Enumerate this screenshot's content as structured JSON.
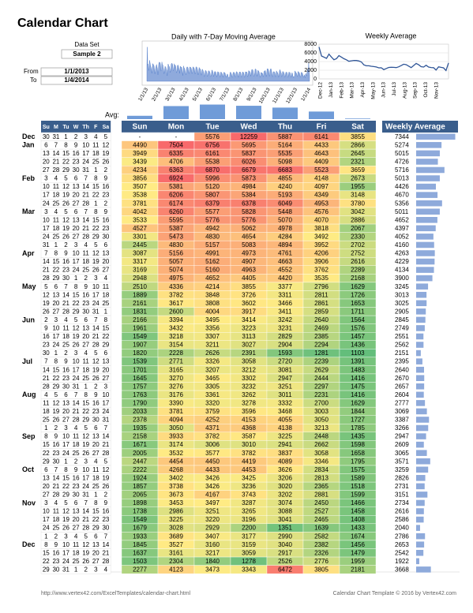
{
  "header": {
    "title": "Calendar Chart"
  },
  "settings": {
    "data_set_label": "Data Set",
    "data_set": "Sample 2",
    "from_label": "From",
    "from": "1/1/2013",
    "to_label": "To",
    "to": "1/4/2014"
  },
  "daily_chart": {
    "type": "area",
    "title": "Daily with 7-Day Moving Average",
    "x_labels": [
      "1/1/13",
      "2/1/13",
      "3/1/13",
      "4/1/13",
      "5/1/13",
      "6/1/13",
      "7/1/13",
      "8/1/13",
      "9/1/13",
      "10/1/13",
      "11/1/13",
      "12/1/13",
      "1/1/14"
    ],
    "ylim": [
      0,
      13000
    ],
    "color": "#4472c4"
  },
  "weekly_chart": {
    "type": "line",
    "title": "Weekly Average",
    "x_labels": [
      "Dec-12",
      "Jan-13",
      "Feb-13",
      "Mar-13",
      "Apr-13",
      "May-13",
      "Jun-13",
      "Jul-13",
      "Aug-13",
      "Sep-13",
      "Oct-13",
      "Nov-13"
    ],
    "ylim": [
      0,
      8000
    ],
    "yticks": [
      0,
      2000,
      4000,
      6000,
      8000
    ],
    "color": "#2f5597"
  },
  "avg": {
    "label": "Avg:",
    "values": [
      2550,
      4150,
      4400,
      4200,
      3900,
      3250,
      2100
    ],
    "lim": [
      2000,
      4600
    ],
    "color": "#6f9bd8"
  },
  "calendar": {
    "weekday_headers": [
      "Su",
      "M",
      "Tu",
      "W",
      "Th",
      "F",
      "Sa"
    ],
    "months": [
      "Dec",
      "Jan",
      null,
      null,
      null,
      "Feb",
      null,
      null,
      null,
      "Mar",
      null,
      null,
      null,
      null,
      "Apr",
      null,
      null,
      null,
      "May",
      null,
      null,
      null,
      "Jun",
      null,
      null,
      null,
      null,
      "Jul",
      null,
      null,
      null,
      "Aug",
      null,
      null,
      null,
      null,
      "Sep",
      null,
      null,
      null,
      "Oct",
      null,
      null,
      null,
      "Nov",
      null,
      null,
      null,
      null,
      "Dec",
      null,
      null,
      null
    ],
    "weeks": [
      [
        30,
        31,
        1,
        2,
        3,
        4,
        5
      ],
      [
        6,
        7,
        8,
        9,
        10,
        11,
        12
      ],
      [
        13,
        14,
        15,
        16,
        17,
        18,
        19
      ],
      [
        20,
        21,
        22,
        23,
        24,
        25,
        26
      ],
      [
        27,
        28,
        29,
        30,
        31,
        1,
        2
      ],
      [
        3,
        4,
        5,
        6,
        7,
        8,
        9
      ],
      [
        10,
        11,
        12,
        13,
        14,
        15,
        16
      ],
      [
        17,
        18,
        19,
        20,
        21,
        22,
        23
      ],
      [
        24,
        25,
        26,
        27,
        28,
        1,
        2
      ],
      [
        3,
        4,
        5,
        6,
        7,
        8,
        9
      ],
      [
        10,
        11,
        12,
        13,
        14,
        15,
        16
      ],
      [
        17,
        18,
        19,
        20,
        21,
        22,
        23
      ],
      [
        24,
        25,
        26,
        27,
        28,
        29,
        30
      ],
      [
        31,
        1,
        2,
        3,
        4,
        5,
        6
      ],
      [
        7,
        8,
        9,
        10,
        11,
        12,
        13
      ],
      [
        14,
        15,
        16,
        17,
        18,
        19,
        20
      ],
      [
        21,
        22,
        23,
        24,
        25,
        26,
        27
      ],
      [
        28,
        29,
        30,
        1,
        2,
        3,
        4
      ],
      [
        5,
        6,
        7,
        8,
        9,
        10,
        11
      ],
      [
        12,
        13,
        14,
        15,
        16,
        17,
        18
      ],
      [
        19,
        20,
        21,
        22,
        23,
        24,
        25
      ],
      [
        26,
        27,
        28,
        29,
        30,
        31,
        1
      ],
      [
        2,
        3,
        4,
        5,
        6,
        7,
        8
      ],
      [
        9,
        10,
        11,
        12,
        13,
        14,
        15
      ],
      [
        16,
        17,
        18,
        19,
        20,
        21,
        22
      ],
      [
        23,
        24,
        25,
        26,
        27,
        28,
        29
      ],
      [
        30,
        1,
        2,
        3,
        4,
        5,
        6
      ],
      [
        7,
        8,
        9,
        10,
        11,
        12,
        13
      ],
      [
        14,
        15,
        16,
        17,
        18,
        19,
        20
      ],
      [
        21,
        22,
        23,
        24,
        25,
        26,
        27
      ],
      [
        28,
        29,
        30,
        31,
        1,
        2,
        3
      ],
      [
        4,
        5,
        6,
        7,
        8,
        9,
        10
      ],
      [
        11,
        12,
        13,
        14,
        15,
        16,
        17
      ],
      [
        18,
        19,
        20,
        21,
        22,
        23,
        24
      ],
      [
        25,
        26,
        27,
        28,
        29,
        30,
        31
      ],
      [
        1,
        2,
        3,
        4,
        5,
        6,
        7
      ],
      [
        8,
        9,
        10,
        11,
        12,
        13,
        14
      ],
      [
        15,
        16,
        17,
        18,
        19,
        20,
        21
      ],
      [
        22,
        23,
        24,
        25,
        26,
        27,
        28
      ],
      [
        29,
        30,
        1,
        2,
        3,
        4,
        5
      ],
      [
        6,
        7,
        8,
        9,
        10,
        11,
        12
      ],
      [
        13,
        14,
        15,
        16,
        17,
        18,
        19
      ],
      [
        20,
        21,
        22,
        23,
        24,
        25,
        26
      ],
      [
        27,
        28,
        29,
        30,
        31,
        1,
        2
      ],
      [
        3,
        4,
        5,
        6,
        7,
        8,
        9
      ],
      [
        10,
        11,
        12,
        13,
        14,
        15,
        16
      ],
      [
        17,
        18,
        19,
        20,
        21,
        22,
        23
      ],
      [
        24,
        25,
        26,
        27,
        28,
        29,
        30
      ],
      [
        1,
        2,
        3,
        4,
        5,
        6,
        7
      ],
      [
        8,
        9,
        10,
        11,
        12,
        13,
        14
      ],
      [
        15,
        16,
        17,
        18,
        19,
        20,
        21
      ],
      [
        22,
        23,
        24,
        25,
        26,
        27,
        28
      ],
      [
        29,
        30,
        31,
        1,
        2,
        3,
        4
      ]
    ]
  },
  "table": {
    "headers": [
      "Sun",
      "Mon",
      "Tue",
      "Wed",
      "Thu",
      "Fri",
      "Sat"
    ],
    "weekly_header": "Weekly Average",
    "weekly_lim": [
      1450,
      7400
    ],
    "weekly_color": "#8eaadb",
    "color_stops": [
      {
        "value": 1100,
        "color": "#63be7b"
      },
      {
        "value": 3500,
        "color": "#ffeb84"
      },
      {
        "value": 7000,
        "color": "#f8696b"
      }
    ],
    "rows": [
      {
        "values": [
          "-",
          "-",
          5576,
          12259,
          5887,
          6141,
          3855
        ],
        "weekly_average": 7344
      },
      {
        "values": [
          4490,
          7504,
          6756,
          5695,
          5164,
          4433,
          2866
        ],
        "weekly_average": 5274
      },
      {
        "values": [
          3949,
          6335,
          6161,
          5837,
          5535,
          4643,
          2645
        ],
        "weekly_average": 5015
      },
      {
        "values": [
          3439,
          4706,
          5538,
          6026,
          5098,
          4409,
          2321
        ],
        "weekly_average": 4726
      },
      {
        "values": [
          4234,
          6363,
          6870,
          6679,
          6683,
          5523,
          3659
        ],
        "weekly_average": 5716
      },
      {
        "values": [
          3856,
          6924,
          5996,
          5873,
          4855,
          4148,
          2673
        ],
        "weekly_average": 5013
      },
      {
        "values": [
          3507,
          5381,
          5120,
          4984,
          4240,
          4097,
          1955
        ],
        "weekly_average": 4426
      },
      {
        "values": [
          3538,
          6206,
          5807,
          5384,
          5193,
          4349,
          3148
        ],
        "weekly_average": 4670
      },
      {
        "values": [
          3781,
          6174,
          6379,
          6378,
          6049,
          4953,
          3780
        ],
        "weekly_average": 5356
      },
      {
        "values": [
          4042,
          6260,
          5577,
          5828,
          5448,
          4576,
          3042
        ],
        "weekly_average": 5011
      },
      {
        "values": [
          3533,
          5595,
          5776,
          5776,
          5070,
          4070,
          2886
        ],
        "weekly_average": 4652
      },
      {
        "values": [
          4527,
          5387,
          4942,
          5062,
          4978,
          3818,
          2067
        ],
        "weekly_average": 4397
      },
      {
        "values": [
          3301,
          5473,
          4830,
          4654,
          4284,
          3492,
          2330
        ],
        "weekly_average": 4052
      },
      {
        "values": [
          2445,
          4830,
          5157,
          5083,
          4894,
          3952,
          2702
        ],
        "weekly_average": 4160
      },
      {
        "values": [
          3087,
          5156,
          4991,
          4973,
          4761,
          4206,
          2752
        ],
        "weekly_average": 4263
      },
      {
        "values": [
          3317,
          5057,
          5162,
          4907,
          4663,
          3906,
          2616
        ],
        "weekly_average": 4229
      },
      {
        "values": [
          3169,
          5074,
          5160,
          4963,
          4552,
          3762,
          2289
        ],
        "weekly_average": 4134
      },
      {
        "values": [
          2948,
          4975,
          4652,
          4405,
          4420,
          3535,
          2168
        ],
        "weekly_average": 3900
      },
      {
        "values": [
          2510,
          4336,
          4214,
          3855,
          3377,
          2796,
          1629
        ],
        "weekly_average": 3245
      },
      {
        "values": [
          1889,
          3782,
          3848,
          3726,
          3311,
          2811,
          1726
        ],
        "weekly_average": 3013
      },
      {
        "values": [
          2161,
          3617,
          3808,
          3602,
          3466,
          2861,
          1653
        ],
        "weekly_average": 3025
      },
      {
        "values": [
          1831,
          2600,
          4004,
          3917,
          3411,
          2859,
          1711
        ],
        "weekly_average": 2905
      },
      {
        "values": [
          2166,
          3394,
          3495,
          3414,
          3242,
          2640,
          1564
        ],
        "weekly_average": 2845
      },
      {
        "values": [
          1961,
          3432,
          3356,
          3223,
          3231,
          2469,
          1576
        ],
        "weekly_average": 2749
      },
      {
        "values": [
          1549,
          3218,
          3307,
          3113,
          2829,
          2385,
          1457
        ],
        "weekly_average": 2551
      },
      {
        "values": [
          1907,
          3154,
          3211,
          3027,
          2904,
          2294,
          1436
        ],
        "weekly_average": 2562
      },
      {
        "values": [
          1820,
          2228,
          2626,
          2391,
          1593,
          1281,
          1103
        ],
        "weekly_average": 2151
      },
      {
        "values": [
          1539,
          2771,
          3326,
          3058,
          2720,
          2239,
          1391
        ],
        "weekly_average": 2395
      },
      {
        "values": [
          1701,
          3165,
          3207,
          3212,
          3081,
          2629,
          1483
        ],
        "weekly_average": 2640
      },
      {
        "values": [
          1645,
          3270,
          3465,
          3302,
          2947,
          2444,
          1416
        ],
        "weekly_average": 2670
      },
      {
        "values": [
          1757,
          3276,
          3305,
          3232,
          3251,
          2297,
          1475
        ],
        "weekly_average": 2657
      },
      {
        "values": [
          1763,
          3176,
          3361,
          3262,
          3011,
          2231,
          1416
        ],
        "weekly_average": 2604
      },
      {
        "values": [
          1790,
          3390,
          3320,
          3278,
          3332,
          2700,
          1629
        ],
        "weekly_average": 2777
      },
      {
        "values": [
          2033,
          3781,
          3759,
          3596,
          3468,
          3003,
          1844
        ],
        "weekly_average": 3069
      },
      {
        "values": [
          2378,
          4094,
          4252,
          4153,
          4055,
          3050,
          1727
        ],
        "weekly_average": 3387
      },
      {
        "values": [
          1935,
          3050,
          4371,
          4368,
          4138,
          3213,
          1785
        ],
        "weekly_average": 3266
      },
      {
        "values": [
          2158,
          3933,
          3782,
          3587,
          3225,
          2448,
          1435
        ],
        "weekly_average": 2947
      },
      {
        "values": [
          1671,
          3174,
          3006,
          3010,
          2941,
          2662,
          1598
        ],
        "weekly_average": 2609
      },
      {
        "values": [
          2005,
          3532,
          3577,
          3782,
          3837,
          3058,
          1658
        ],
        "weekly_average": 3065
      },
      {
        "values": [
          2447,
          4454,
          4450,
          4419,
          4089,
          3346,
          1795
        ],
        "weekly_average": 3571
      },
      {
        "values": [
          2222,
          4268,
          4433,
          4453,
          3626,
          2834,
          1575
        ],
        "weekly_average": 3259
      },
      {
        "values": [
          1924,
          3402,
          3426,
          3425,
          3206,
          2813,
          1589
        ],
        "weekly_average": 2826
      },
      {
        "values": [
          1857,
          3738,
          3426,
          3236,
          3020,
          2365,
          1518
        ],
        "weekly_average": 2731
      },
      {
        "values": [
          2065,
          3673,
          4167,
          3743,
          3202,
          2881,
          1599
        ],
        "weekly_average": 3151
      },
      {
        "values": [
          1898,
          3453,
          3497,
          3287,
          3074,
          2450,
          1466
        ],
        "weekly_average": 2734
      },
      {
        "values": [
          1738,
          2986,
          3251,
          3265,
          3088,
          2527,
          1458
        ],
        "weekly_average": 2616
      },
      {
        "values": [
          1549,
          3225,
          3220,
          3196,
          3041,
          2465,
          1408
        ],
        "weekly_average": 2586
      },
      {
        "values": [
          1679,
          3028,
          2929,
          2200,
          1351,
          1639,
          1433
        ],
        "weekly_average": 2040
      },
      {
        "values": [
          1933,
          3689,
          3407,
          3177,
          2990,
          2582,
          1674
        ],
        "weekly_average": 2786
      },
      {
        "values": [
          1845,
          3527,
          3160,
          3159,
          3040,
          2382,
          1456
        ],
        "weekly_average": 2653
      },
      {
        "values": [
          1637,
          3161,
          3217,
          3059,
          2917,
          2326,
          1479
        ],
        "weekly_average": 2542
      },
      {
        "values": [
          1503,
          2304,
          1840,
          1278,
          2526,
          2776,
          1959
        ],
        "weekly_average": 1922
      },
      {
        "values": [
          2277,
          4123,
          3473,
          3343,
          6472,
          3805,
          2181
        ],
        "weekly_average": 3668
      }
    ]
  },
  "footer": {
    "left": "http://www.vertex42.com/ExcelTemplates/calendar-chart.html",
    "right": "Calendar Chart Template © 2016 by Vertex42.com"
  }
}
